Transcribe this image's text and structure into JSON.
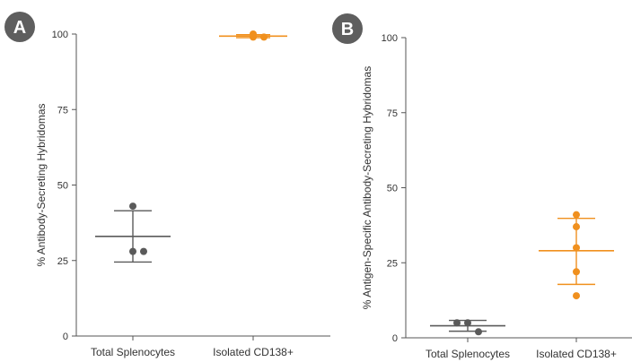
{
  "chart_data": [
    {
      "type": "scatter",
      "panel_label": "A",
      "ylabel": "% Antibody-Secreting Hybridomas",
      "ylim": [
        0,
        100
      ],
      "yticks": [
        0,
        25,
        50,
        75,
        100
      ],
      "categories": [
        "Total Splenocytes",
        "Isolated CD138+"
      ],
      "groups": [
        {
          "category": "Total Splenocytes",
          "color": "#5a5a5a",
          "points": [
            43,
            28,
            28
          ],
          "mean": 33,
          "error_low": 24.5,
          "error_high": 41.5
        },
        {
          "category": "Isolated CD138+",
          "color": "#f0901e",
          "points": [
            100,
            99,
            99
          ],
          "mean": 99.3,
          "error_low": 98.8,
          "error_high": 99.8
        }
      ],
      "grid": false
    },
    {
      "type": "scatter",
      "panel_label": "B",
      "ylabel": "% Antigen-Specific Antibody-Secreting Hybridomas",
      "ylim": [
        0,
        100
      ],
      "yticks": [
        0,
        25,
        50,
        75,
        100
      ],
      "categories": [
        "Total Splenocytes",
        "Isolated CD138+"
      ],
      "groups": [
        {
          "category": "Total Splenocytes",
          "color": "#5a5a5a",
          "points": [
            5,
            5,
            2
          ],
          "mean": 4,
          "error_low": 2.2,
          "error_high": 5.8
        },
        {
          "category": "Isolated CD138+",
          "color": "#f0901e",
          "points": [
            41,
            37,
            30,
            22,
            14
          ],
          "mean": 29,
          "error_low": 17.8,
          "error_high": 39.8
        }
      ],
      "grid": false
    }
  ],
  "colors": {
    "axis": "#555555",
    "badge": "#5e5e5e",
    "text": "#333333"
  }
}
